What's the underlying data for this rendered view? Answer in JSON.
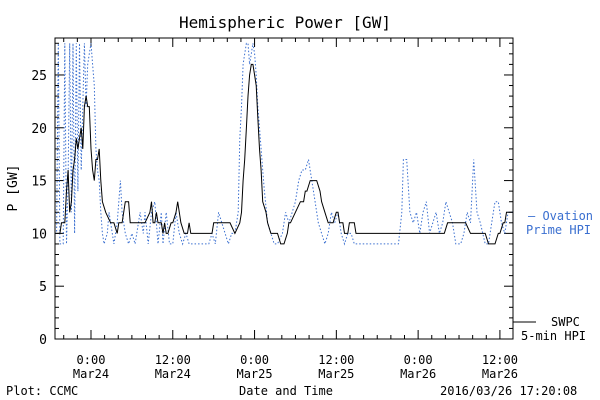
{
  "chart_data": {
    "type": "line",
    "title": "Hemispheric Power [GW]",
    "ylabel": "P [GW]",
    "xlabel": "Date and Time",
    "ylim": [
      0,
      28.5
    ],
    "xlim": [
      -0.22,
      2.58
    ],
    "yticks": [
      0,
      5,
      10,
      15,
      20,
      25
    ],
    "xticks": [
      {
        "x": 0.0,
        "time": "0:00",
        "date": "Mar24"
      },
      {
        "x": 0.5,
        "time": "12:00",
        "date": "Mar24"
      },
      {
        "x": 1.0,
        "time": "0:00",
        "date": "Mar25"
      },
      {
        "x": 1.5,
        "time": "12:00",
        "date": "Mar25"
      },
      {
        "x": 2.0,
        "time": "0:00",
        "date": "Mar26"
      },
      {
        "x": 2.5,
        "time": "12:00",
        "date": "Mar26"
      }
    ],
    "x_units": "days since 2016-03-24 00:00",
    "series": [
      {
        "name": "SWPC 5-min HPI",
        "color": "#000000",
        "style": "solid",
        "points": [
          [
            -0.22,
            10
          ],
          [
            -0.19,
            10
          ],
          [
            -0.18,
            11
          ],
          [
            -0.16,
            11
          ],
          [
            -0.15,
            14
          ],
          [
            -0.14,
            16
          ],
          [
            -0.135,
            14
          ],
          [
            -0.13,
            12
          ],
          [
            -0.12,
            13
          ],
          [
            -0.11,
            16
          ],
          [
            -0.1,
            17
          ],
          [
            -0.09,
            19
          ],
          [
            -0.08,
            18
          ],
          [
            -0.07,
            19
          ],
          [
            -0.06,
            20
          ],
          [
            -0.05,
            18
          ],
          [
            -0.04,
            22
          ],
          [
            -0.03,
            23
          ],
          [
            -0.02,
            22
          ],
          [
            -0.01,
            22
          ],
          [
            0.0,
            18
          ],
          [
            0.01,
            16
          ],
          [
            0.02,
            15
          ],
          [
            0.03,
            17
          ],
          [
            0.04,
            17
          ],
          [
            0.05,
            18
          ],
          [
            0.06,
            15
          ],
          [
            0.07,
            13
          ],
          [
            0.09,
            12
          ],
          [
            0.12,
            11
          ],
          [
            0.14,
            11
          ],
          [
            0.16,
            10
          ],
          [
            0.17,
            11
          ],
          [
            0.19,
            11
          ],
          [
            0.2,
            12
          ],
          [
            0.21,
            13
          ],
          [
            0.23,
            13
          ],
          [
            0.24,
            11
          ],
          [
            0.27,
            11
          ],
          [
            0.3,
            11
          ],
          [
            0.33,
            11
          ],
          [
            0.36,
            12
          ],
          [
            0.37,
            13
          ],
          [
            0.38,
            11
          ],
          [
            0.39,
            11
          ],
          [
            0.4,
            12
          ],
          [
            0.41,
            11
          ],
          [
            0.43,
            11
          ],
          [
            0.44,
            10
          ],
          [
            0.45,
            11
          ],
          [
            0.46,
            10
          ],
          [
            0.47,
            10
          ],
          [
            0.49,
            11
          ],
          [
            0.5,
            11
          ],
          [
            0.52,
            12
          ],
          [
            0.53,
            13
          ],
          [
            0.54,
            12
          ],
          [
            0.55,
            11
          ],
          [
            0.57,
            10
          ],
          [
            0.59,
            10
          ],
          [
            0.6,
            11
          ],
          [
            0.61,
            10
          ],
          [
            0.62,
            10
          ],
          [
            0.65,
            10
          ],
          [
            0.7,
            10
          ],
          [
            0.74,
            10
          ],
          [
            0.75,
            11
          ],
          [
            0.76,
            11
          ],
          [
            0.78,
            11
          ],
          [
            0.81,
            11
          ],
          [
            0.85,
            11
          ],
          [
            0.88,
            10
          ],
          [
            0.91,
            11
          ],
          [
            0.92,
            12
          ],
          [
            0.93,
            15
          ],
          [
            0.94,
            17
          ],
          [
            0.95,
            20
          ],
          [
            0.96,
            23
          ],
          [
            0.97,
            25
          ],
          [
            0.98,
            26
          ],
          [
            0.99,
            26
          ],
          [
            1.0,
            25
          ],
          [
            1.01,
            24
          ],
          [
            1.02,
            21
          ],
          [
            1.03,
            18
          ],
          [
            1.04,
            16
          ],
          [
            1.05,
            13
          ],
          [
            1.07,
            12
          ],
          [
            1.08,
            11
          ],
          [
            1.1,
            10
          ],
          [
            1.12,
            10
          ],
          [
            1.14,
            10
          ],
          [
            1.16,
            9
          ],
          [
            1.18,
            9
          ],
          [
            1.2,
            10
          ],
          [
            1.21,
            11
          ],
          [
            1.22,
            11
          ],
          [
            1.25,
            12
          ],
          [
            1.28,
            13
          ],
          [
            1.3,
            13
          ],
          [
            1.31,
            14
          ],
          [
            1.32,
            14
          ],
          [
            1.34,
            15
          ],
          [
            1.36,
            15
          ],
          [
            1.38,
            15
          ],
          [
            1.4,
            14
          ],
          [
            1.41,
            13
          ],
          [
            1.43,
            12
          ],
          [
            1.45,
            11
          ],
          [
            1.46,
            11
          ],
          [
            1.48,
            11
          ],
          [
            1.5,
            12
          ],
          [
            1.51,
            12
          ],
          [
            1.52,
            11
          ],
          [
            1.54,
            11
          ],
          [
            1.55,
            10
          ],
          [
            1.57,
            10
          ],
          [
            1.58,
            11
          ],
          [
            1.6,
            11
          ],
          [
            1.61,
            11
          ],
          [
            1.62,
            10
          ],
          [
            1.64,
            10
          ],
          [
            1.67,
            10
          ],
          [
            1.7,
            10
          ],
          [
            1.73,
            10
          ],
          [
            1.76,
            10
          ],
          [
            1.79,
            10
          ],
          [
            1.82,
            10
          ],
          [
            1.85,
            10
          ],
          [
            1.88,
            10
          ],
          [
            1.9,
            10
          ],
          [
            1.93,
            10
          ],
          [
            1.96,
            10
          ],
          [
            2.0,
            10
          ],
          [
            2.03,
            10
          ],
          [
            2.06,
            10
          ],
          [
            2.1,
            10
          ],
          [
            2.13,
            10
          ],
          [
            2.16,
            10
          ],
          [
            2.18,
            11
          ],
          [
            2.2,
            11
          ],
          [
            2.23,
            11
          ],
          [
            2.26,
            11
          ],
          [
            2.29,
            11
          ],
          [
            2.32,
            10
          ],
          [
            2.35,
            10
          ],
          [
            2.38,
            10
          ],
          [
            2.41,
            10
          ],
          [
            2.43,
            9
          ],
          [
            2.45,
            9
          ],
          [
            2.47,
            9
          ],
          [
            2.49,
            10
          ],
          [
            2.5,
            10
          ],
          [
            2.52,
            11
          ],
          [
            2.53,
            11
          ],
          [
            2.54,
            12
          ],
          [
            2.55,
            12
          ],
          [
            2.56,
            12
          ],
          [
            2.58,
            12
          ]
        ]
      },
      {
        "name": "Ovation Prime HPI",
        "color": "#3a6fd0",
        "style": "dotted",
        "points": [
          [
            -0.22,
            10
          ],
          [
            -0.21,
            10
          ],
          [
            -0.2,
            28
          ],
          [
            -0.19,
            9
          ],
          [
            -0.17,
            9
          ],
          [
            -0.16,
            28
          ],
          [
            -0.15,
            9
          ],
          [
            -0.14,
            15
          ],
          [
            -0.13,
            28
          ],
          [
            -0.12,
            12
          ],
          [
            -0.11,
            28
          ],
          [
            -0.1,
            10
          ],
          [
            -0.09,
            28
          ],
          [
            -0.08,
            14
          ],
          [
            -0.07,
            28
          ],
          [
            -0.06,
            16
          ],
          [
            -0.05,
            22
          ],
          [
            -0.04,
            28
          ],
          [
            -0.03,
            22
          ],
          [
            -0.02,
            26
          ],
          [
            -0.01,
            27
          ],
          [
            0.0,
            28
          ],
          [
            0.01,
            26
          ],
          [
            0.02,
            24
          ],
          [
            0.03,
            18
          ],
          [
            0.04,
            16
          ],
          [
            0.05,
            15
          ],
          [
            0.06,
            12
          ],
          [
            0.07,
            10
          ],
          [
            0.08,
            9
          ],
          [
            0.1,
            10
          ],
          [
            0.11,
            12
          ],
          [
            0.13,
            10
          ],
          [
            0.14,
            9
          ],
          [
            0.16,
            11
          ],
          [
            0.17,
            13
          ],
          [
            0.18,
            15
          ],
          [
            0.19,
            12
          ],
          [
            0.21,
            10
          ],
          [
            0.23,
            9
          ],
          [
            0.25,
            10
          ],
          [
            0.27,
            9
          ],
          [
            0.3,
            12
          ],
          [
            0.32,
            10
          ],
          [
            0.33,
            12
          ],
          [
            0.35,
            9
          ],
          [
            0.37,
            12
          ],
          [
            0.39,
            13
          ],
          [
            0.41,
            9
          ],
          [
            0.43,
            12
          ],
          [
            0.44,
            9
          ],
          [
            0.46,
            12
          ],
          [
            0.48,
            9
          ],
          [
            0.5,
            9
          ],
          [
            0.52,
            12
          ],
          [
            0.54,
            10
          ],
          [
            0.56,
            9
          ],
          [
            0.58,
            10
          ],
          [
            0.6,
            9
          ],
          [
            0.63,
            9
          ],
          [
            0.66,
            9
          ],
          [
            0.7,
            9
          ],
          [
            0.72,
            9
          ],
          [
            0.74,
            10
          ],
          [
            0.76,
            9
          ],
          [
            0.78,
            12
          ],
          [
            0.8,
            11
          ],
          [
            0.82,
            10
          ],
          [
            0.84,
            9
          ],
          [
            0.86,
            10
          ],
          [
            0.88,
            10
          ],
          [
            0.9,
            12
          ],
          [
            0.91,
            19
          ],
          [
            0.92,
            22
          ],
          [
            0.93,
            26
          ],
          [
            0.94,
            27
          ],
          [
            0.95,
            28
          ],
          [
            0.96,
            28
          ],
          [
            0.97,
            26
          ],
          [
            0.98,
            27
          ],
          [
            0.99,
            28
          ],
          [
            1.0,
            27
          ],
          [
            1.01,
            25
          ],
          [
            1.02,
            22
          ],
          [
            1.03,
            20
          ],
          [
            1.04,
            18
          ],
          [
            1.05,
            16
          ],
          [
            1.06,
            14
          ],
          [
            1.08,
            11
          ],
          [
            1.1,
            10
          ],
          [
            1.12,
            9
          ],
          [
            1.14,
            9
          ],
          [
            1.17,
            10
          ],
          [
            1.19,
            12
          ],
          [
            1.21,
            11
          ],
          [
            1.23,
            12
          ],
          [
            1.25,
            13
          ],
          [
            1.27,
            15
          ],
          [
            1.29,
            16
          ],
          [
            1.31,
            16
          ],
          [
            1.33,
            17
          ],
          [
            1.35,
            15
          ],
          [
            1.37,
            13
          ],
          [
            1.39,
            11
          ],
          [
            1.41,
            10
          ],
          [
            1.43,
            9
          ],
          [
            1.45,
            10
          ],
          [
            1.47,
            12
          ],
          [
            1.49,
            11
          ],
          [
            1.51,
            12
          ],
          [
            1.53,
            10
          ],
          [
            1.55,
            9
          ],
          [
            1.57,
            10
          ],
          [
            1.59,
            10
          ],
          [
            1.61,
            9
          ],
          [
            1.64,
            9
          ],
          [
            1.67,
            9
          ],
          [
            1.7,
            9
          ],
          [
            1.73,
            9
          ],
          [
            1.76,
            9
          ],
          [
            1.79,
            9
          ],
          [
            1.82,
            9
          ],
          [
            1.85,
            9
          ],
          [
            1.88,
            9
          ],
          [
            1.9,
            12
          ],
          [
            1.91,
            17
          ],
          [
            1.93,
            17
          ],
          [
            1.95,
            12
          ],
          [
            1.97,
            11
          ],
          [
            1.99,
            12
          ],
          [
            2.01,
            10
          ],
          [
            2.03,
            12
          ],
          [
            2.05,
            13
          ],
          [
            2.07,
            10
          ],
          [
            2.09,
            11
          ],
          [
            2.11,
            12
          ],
          [
            2.13,
            10
          ],
          [
            2.15,
            11
          ],
          [
            2.17,
            13
          ],
          [
            2.19,
            12
          ],
          [
            2.21,
            11
          ],
          [
            2.23,
            9
          ],
          [
            2.26,
            9
          ],
          [
            2.28,
            10
          ],
          [
            2.3,
            12
          ],
          [
            2.32,
            11
          ],
          [
            2.34,
            17
          ],
          [
            2.36,
            12
          ],
          [
            2.38,
            11
          ],
          [
            2.41,
            9
          ],
          [
            2.43,
            9
          ],
          [
            2.45,
            11
          ],
          [
            2.47,
            13
          ],
          [
            2.49,
            13
          ],
          [
            2.51,
            11
          ],
          [
            2.53,
            10
          ],
          [
            2.55,
            12
          ],
          [
            2.58,
            12
          ]
        ]
      }
    ]
  },
  "legend": {
    "ovation_line1": "— Ovation",
    "ovation_line2": "Prime HPI",
    "swpc_line1": "SWPC",
    "swpc_line2": "5-min HPI"
  },
  "footer": {
    "left": "Plot: CCMC",
    "center": "Date and Time",
    "right": "2016/03/26 17:20:08"
  }
}
